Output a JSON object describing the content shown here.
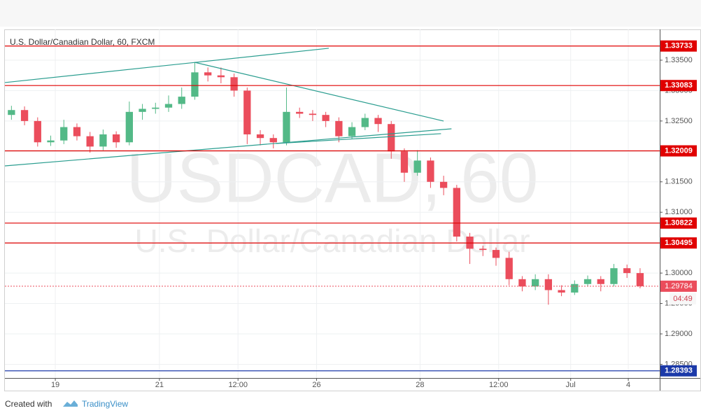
{
  "chart_data": {
    "type": "candlestick",
    "title": "U.S. Dollar/Canadian Dollar, 60, FXCM",
    "watermark": "USDCAD, 60",
    "watermark_subtitle": "U.S. Dollar/Canadian Dollar",
    "up_color": "#53b987",
    "down_color": "#eb4d5c",
    "open": [
      1.326,
      1.3268,
      1.325,
      1.3215,
      1.3218,
      1.324,
      1.3225,
      1.3208,
      1.3228,
      1.3215,
      1.3265,
      1.327,
      1.3272,
      1.3278,
      1.329,
      1.333,
      1.3325,
      1.3322,
      1.33,
      1.3228,
      1.3222,
      1.3215,
      1.3265,
      1.3262,
      1.326,
      1.325,
      1.3225,
      1.324,
      1.3255,
      1.3245,
      1.32,
      1.3165,
      1.3185,
      1.315,
      1.314,
      1.306,
      1.304,
      1.3038,
      1.3025,
      1.299,
      1.2978,
      1.299,
      1.2972,
      1.2968,
      1.2982,
      1.299,
      1.2982,
      1.3008,
      1.3
    ],
    "high": [
      1.3275,
      1.3274,
      1.3256,
      1.3226,
      1.3252,
      1.3246,
      1.3232,
      1.3236,
      1.3233,
      1.3282,
      1.3278,
      1.328,
      1.3292,
      1.3305,
      1.3346,
      1.3338,
      1.3338,
      1.3328,
      1.3305,
      1.3235,
      1.3228,
      1.3305,
      1.3272,
      1.3268,
      1.3265,
      1.3256,
      1.3248,
      1.3262,
      1.326,
      1.325,
      1.3205,
      1.3202,
      1.319,
      1.316,
      1.3145,
      1.3066,
      1.3045,
      1.3042,
      1.3035,
      1.2995,
      1.2998,
      1.2998,
      1.298,
      1.2988,
      1.2996,
      1.2995,
      1.3015,
      1.3014,
      1.3008
    ],
    "low": [
      1.3252,
      1.3243,
      1.3208,
      1.3209,
      1.3212,
      1.3218,
      1.3198,
      1.3202,
      1.3206,
      1.321,
      1.3252,
      1.3262,
      1.3265,
      1.327,
      1.3285,
      1.3315,
      1.3312,
      1.329,
      1.3212,
      1.321,
      1.3205,
      1.321,
      1.3255,
      1.325,
      1.324,
      1.3215,
      1.322,
      1.3235,
      1.3232,
      1.3188,
      1.315,
      1.316,
      1.314,
      1.3128,
      1.3052,
      1.3015,
      1.3028,
      1.3012,
      1.298,
      1.297,
      1.2972,
      1.2948,
      1.2962,
      1.2964,
      1.2978,
      1.297,
      1.2978,
      1.2992,
      1.2975
    ],
    "close": [
      1.3268,
      1.325,
      1.3215,
      1.3218,
      1.324,
      1.3225,
      1.3208,
      1.3228,
      1.3215,
      1.3265,
      1.327,
      1.3272,
      1.3278,
      1.329,
      1.333,
      1.3325,
      1.3322,
      1.33,
      1.3228,
      1.3222,
      1.3215,
      1.3265,
      1.3262,
      1.326,
      1.325,
      1.3225,
      1.324,
      1.3255,
      1.3245,
      1.32,
      1.3165,
      1.3185,
      1.315,
      1.314,
      1.306,
      1.304,
      1.3038,
      1.3025,
      1.299,
      1.2978,
      1.299,
      1.2972,
      1.2968,
      1.2982,
      1.299,
      1.2982,
      1.3008,
      1.3,
      1.29784
    ],
    "xlim": [
      -0.5,
      49.5
    ],
    "xticks": [
      {
        "value": 3.35,
        "label": "19"
      },
      {
        "value": 11.3,
        "label": "21"
      },
      {
        "value": 17.3,
        "label": "12:00"
      },
      {
        "value": 23.3,
        "label": "26"
      },
      {
        "value": 31.2,
        "label": "28"
      },
      {
        "value": 37.2,
        "label": "12:00"
      },
      {
        "value": 42.7,
        "label": "Jul"
      },
      {
        "value": 47.1,
        "label": "4"
      }
    ],
    "ylim": [
      1.28275,
      1.34006
    ],
    "yticks": [
      {
        "value": 1.285,
        "label": "1.28500"
      },
      {
        "value": 1.29,
        "label": "1.29000"
      },
      {
        "value": 1.295,
        "label": "1.29500"
      },
      {
        "value": 1.3,
        "label": "1.30000"
      },
      {
        "value": 1.305,
        "label": "1.30500"
      },
      {
        "value": 1.31,
        "label": "1.31000"
      },
      {
        "value": 1.315,
        "label": "1.31500"
      },
      {
        "value": 1.32,
        "label": "1.32000"
      },
      {
        "value": 1.325,
        "label": "1.32500"
      },
      {
        "value": 1.33,
        "label": "1.33000"
      },
      {
        "value": 1.335,
        "label": "1.33500"
      }
    ],
    "grid": true,
    "levels": [
      {
        "value": 1.33733,
        "color": "#e00000"
      },
      {
        "value": 1.33083,
        "color": "#e00000"
      },
      {
        "value": 1.32009,
        "color": "#e00000"
      },
      {
        "value": 1.30822,
        "color": "#e00000"
      },
      {
        "value": 1.30495,
        "color": "#e00000"
      },
      {
        "value": 1.28393,
        "color": "#1c3aa9"
      }
    ],
    "last_price": 1.29784,
    "countdown": "04:49",
    "trendlines": [
      {
        "x": [
          -0.5,
          24.23
        ],
        "y": [
          1.33132,
          1.33696
        ]
      },
      {
        "x": [
          13.98,
          33.0
        ],
        "y": [
          1.33465,
          1.32499
        ]
      },
      {
        "x": [
          -0.5,
          33.6
        ],
        "y": [
          1.31762,
          1.32372
        ]
      },
      {
        "x": [
          20.2,
          32.8
        ],
        "y": [
          1.3213,
          1.32292
        ]
      }
    ],
    "trendline_color": "#2a9d8f"
  },
  "footer": {
    "text": "Created with",
    "brand": "TradingView"
  }
}
